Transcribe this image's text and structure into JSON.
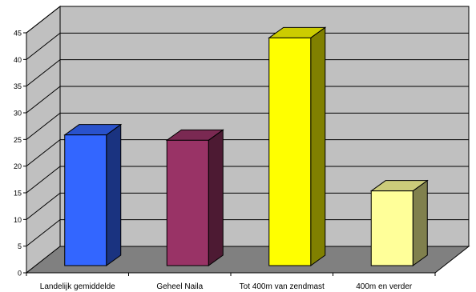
{
  "chart_data": {
    "type": "bar",
    "style": "3d-column",
    "title": "",
    "xlabel": "",
    "ylabel": "",
    "categories": [
      "Landelijk gemiddelde",
      "Geheel Naila",
      "Tot 400m van zendmast",
      "400m en verder"
    ],
    "values": [
      24.5,
      23.5,
      42.7,
      14
    ],
    "colors": [
      "#3366FF",
      "#993366",
      "#FFFF00",
      "#FFFF99"
    ],
    "ylim": [
      0,
      45
    ],
    "yticks": [
      "0",
      "5",
      "10",
      "15",
      "20",
      "25",
      "30",
      "35",
      "40",
      "45"
    ],
    "grid": true,
    "legend": "none",
    "background": {
      "wall": "#C0C0C0",
      "floor": "#808080"
    }
  }
}
